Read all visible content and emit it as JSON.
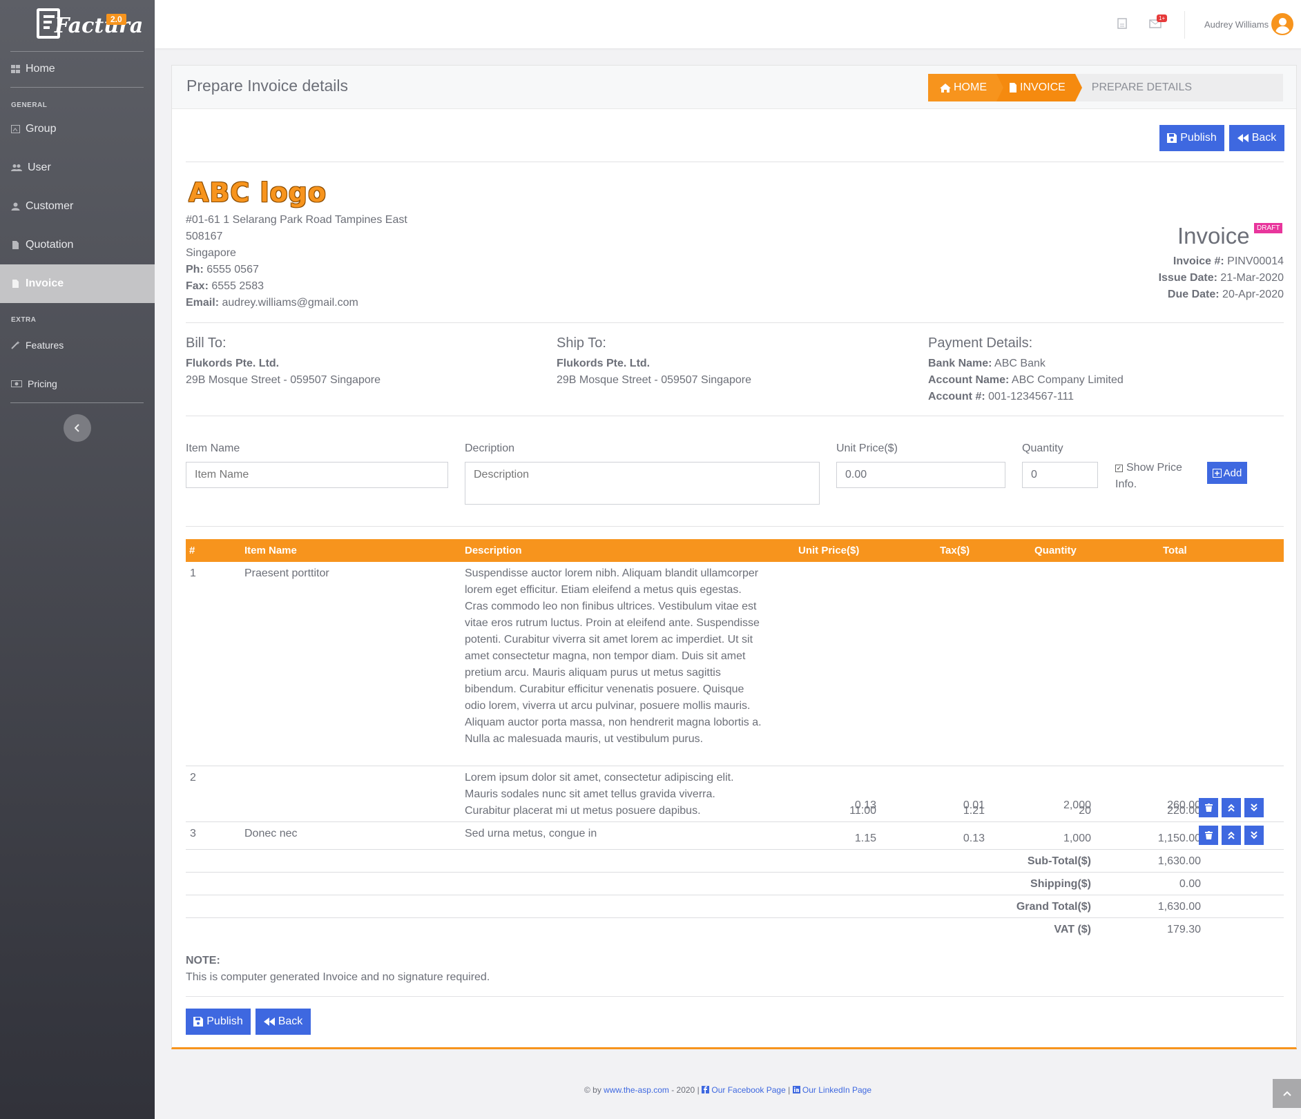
{
  "app": {
    "logo_text": "Factura",
    "version": "2.0"
  },
  "sidebar": {
    "items": [
      {
        "label": "Home"
      },
      {
        "section": "GENERAL"
      },
      {
        "label": "Group"
      },
      {
        "label": "User"
      },
      {
        "label": "Customer"
      },
      {
        "label": "Quotation"
      },
      {
        "label": "Invoice",
        "active": true
      },
      {
        "section": "EXTRA"
      },
      {
        "label": "Features"
      },
      {
        "label": "Pricing"
      }
    ]
  },
  "topbar": {
    "notification_badge": "1+",
    "user_name": "Audrey Williams"
  },
  "page": {
    "title": "Prepare Invoice details",
    "breadcrumb": [
      "HOME",
      "INVOICE",
      "PREPARE DETAILS"
    ],
    "publish_label": "Publish",
    "back_label": "Back"
  },
  "company": {
    "logo_text": "ABC logo",
    "address_line1": "#01-61  1 Selarang Park Road  Tampines East",
    "postcode": "508167",
    "country": "Singapore",
    "phone_label": "Ph:",
    "phone": " 6555 0567",
    "fax_label": "Fax:",
    "fax": " 6555 2583",
    "email_label": "Email:",
    "email": " audrey.williams@gmail.com"
  },
  "invoice": {
    "title": "Invoice",
    "status": "DRAFT",
    "number_label": "Invoice #:",
    "number": " PINV00014",
    "issue_label": "Issue Date:",
    "issue_date": " 21-Mar-2020",
    "due_label": "Due Date:",
    "due_date": " 20-Apr-2020"
  },
  "bill_to": {
    "title": "Bill To:",
    "name": "Flukords Pte. Ltd.",
    "address": "29B Mosque Street - 059507 Singapore"
  },
  "ship_to": {
    "title": "Ship To:",
    "name": "Flukords Pte. Ltd.",
    "address": "29B Mosque Street - 059507 Singapore"
  },
  "payment": {
    "title": "Payment Details:",
    "bank_label": "Bank Name:",
    "bank": " ABC Bank",
    "account_name_label": "Account Name:",
    "account_name": " ABC Company Limited",
    "account_no_label": "Account #:",
    "account_no": " 001-1234567-111"
  },
  "form": {
    "item_label": "Item Name",
    "item_placeholder": "Item Name",
    "desc_label": "Decription",
    "desc_placeholder": "Description",
    "price_label": "Unit Price($)",
    "price_value": "0.00",
    "qty_label": "Quantity",
    "qty_value": "0",
    "show_price_label_1": "Show Price",
    "show_price_label_2": "Info.",
    "show_price_checked": true,
    "add_label": "Add"
  },
  "table": {
    "headers": [
      "#",
      "Item Name",
      "Description",
      "Unit Price($)",
      "Tax($)",
      "Quantity",
      "Total"
    ],
    "rows": [
      {
        "no": "1",
        "item": "Praesent porttitor",
        "description": "Suspendisse auctor lorem nibh. Aliquam blandit ullamcorper lorem eget efficitur. Etiam eleifend a metus quis egestas. Cras commodo leo non finibus ultrices. Vestibulum vitae est vitae eros rutrum luctus. Proin at eleifend ante. Suspendisse potenti. Curabitur viverra sit amet lorem ac imperdiet. Ut sit amet consectetur magna, non tempor diam. Duis sit amet pretium arcu. Mauris aliquam purus ut metus sagittis bibendum. Curabitur efficitur venenatis posuere. Quisque odio lorem, viverra ut arcu pulvinar, posuere mollis mauris. Aliquam auctor porta massa, non hendrerit magna lobortis a. Nulla ac malesuada mauris, ut vestibulum purus.",
        "unit_price": "0.13",
        "tax": "0.01",
        "quantity": "2,000",
        "total": "260.00"
      },
      {
        "no": "2",
        "item": "",
        "description": "Lorem ipsum dolor sit amet, consectetur adipiscing elit. Mauris sodales nunc sit amet tellus gravida viverra. Curabitur placerat mi ut metus posuere dapibus.",
        "unit_price": "11.00",
        "tax": "1.21",
        "quantity": "20",
        "total": "220.00"
      },
      {
        "no": "3",
        "item": "Donec nec",
        "description": "Sed urna metus, congue in",
        "unit_price": "1.15",
        "tax": "0.13",
        "quantity": "1,000",
        "total": "1,150.00"
      }
    ],
    "summary": [
      {
        "label": "Sub-Total($)",
        "value": "1,630.00"
      },
      {
        "label": "Shipping($)",
        "value": "0.00"
      },
      {
        "label": "Grand Total($)",
        "value": "1,630.00"
      },
      {
        "label": "VAT ($)",
        "value": "179.30"
      }
    ]
  },
  "note": {
    "title": "NOTE:",
    "text": "This is computer generated Invoice and no signature required."
  },
  "footer": {
    "prefix": "© by ",
    "site": "www.the-asp.com",
    "middle": " - 2020 | ",
    "facebook": "Our Facebook Page",
    "sep": " | ",
    "linkedin": "Our LinkedIn Page"
  },
  "colors": {
    "accent": "#f7941d",
    "primary_button": "#3e68e0",
    "draft_badge": "#e8359c"
  }
}
